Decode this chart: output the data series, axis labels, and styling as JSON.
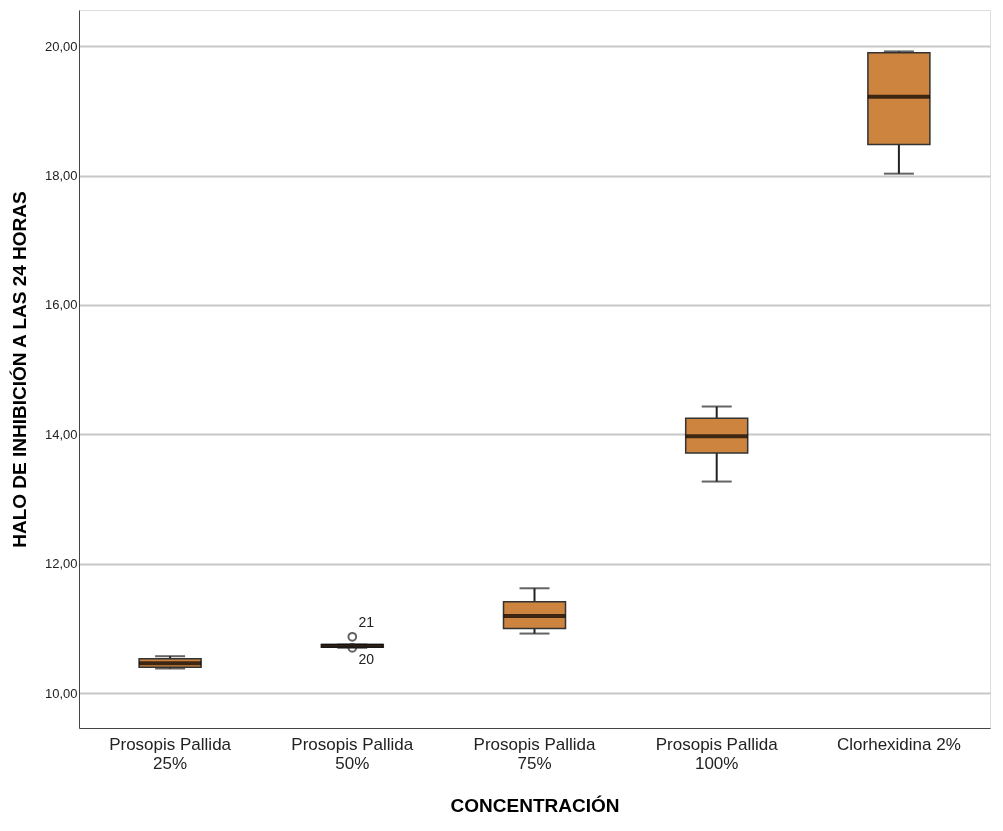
{
  "chart_data": {
    "type": "box",
    "xlabel": "CONCENTRACIÓN",
    "ylabel": "HALO DE INHIBICIÓN A LAS 24 HORAS",
    "categories": [
      "Prosopis Pallida\n25%",
      "Prosopis Pallida\n50%",
      "Prosopis Pallida\n75%",
      "Prosopis Pallida\n100%",
      "Clorhexidina 2%"
    ],
    "boxes": [
      {
        "low": 10.38,
        "q1": 10.4,
        "median": 10.46,
        "q3": 10.53,
        "high": 10.57
      },
      {
        "low": 10.7,
        "q1": 10.71,
        "median": 10.73,
        "q3": 10.75,
        "high": 10.75,
        "outliers": [
          10.87,
          10.7
        ]
      },
      {
        "low": 10.92,
        "q1": 11.0,
        "median": 11.19,
        "q3": 11.41,
        "high": 11.62
      },
      {
        "low": 13.27,
        "q1": 13.71,
        "median": 13.97,
        "q3": 14.25,
        "high": 14.43
      },
      {
        "low": 18.03,
        "q1": 18.48,
        "median": 19.22,
        "q3": 19.9,
        "high": 19.92
      }
    ],
    "color": "#cc843f",
    "annotations": [
      "21",
      "20"
    ],
    "ylim": [
      9.46,
      20.56
    ],
    "yticks": [
      {
        "value": 10,
        "label": "10,00"
      },
      {
        "value": 12,
        "label": "12,00"
      },
      {
        "value": 14,
        "label": "14,00"
      },
      {
        "value": 16,
        "label": "16,00"
      },
      {
        "value": 18,
        "label": "18,00"
      },
      {
        "value": 20,
        "label": "20,00"
      }
    ],
    "grid": "y"
  }
}
